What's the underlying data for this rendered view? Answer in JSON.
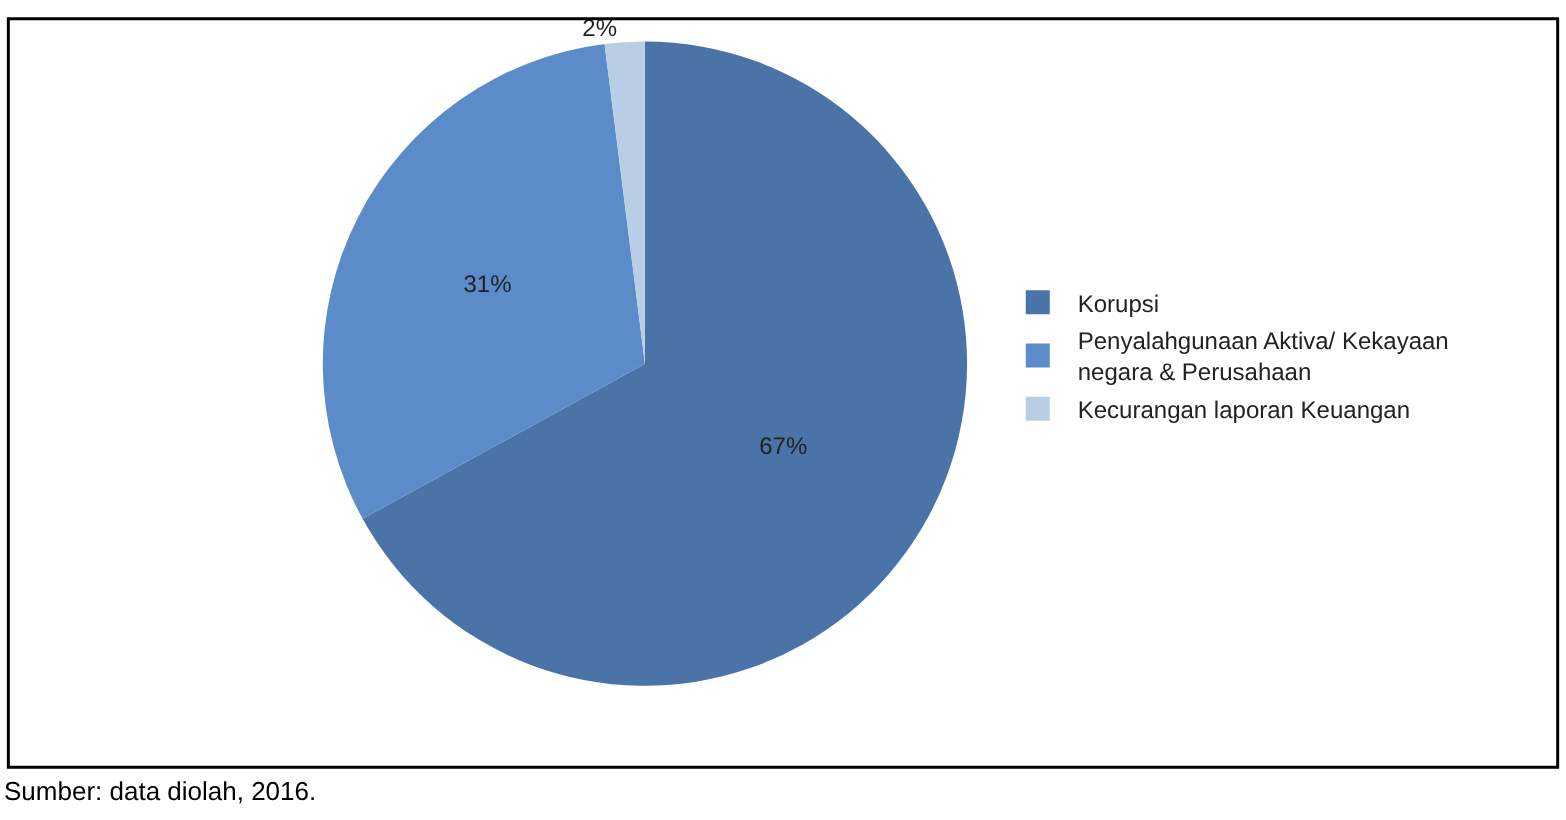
{
  "chart_data": {
    "type": "pie",
    "categories": [
      "Korupsi",
      "Penyalahgunaan Aktiva/ Kekayaan negara & Perusahaan",
      "Kecurangan laporan Keuangan"
    ],
    "values": [
      67,
      31,
      2
    ],
    "value_labels": [
      "67%",
      "31%",
      "2%"
    ],
    "colors": [
      "#4a74a8",
      "#5b8cc9",
      "#b9cde5"
    ],
    "legend": "right",
    "annotations": [
      "Sumber: data diolah, 2016."
    ]
  }
}
